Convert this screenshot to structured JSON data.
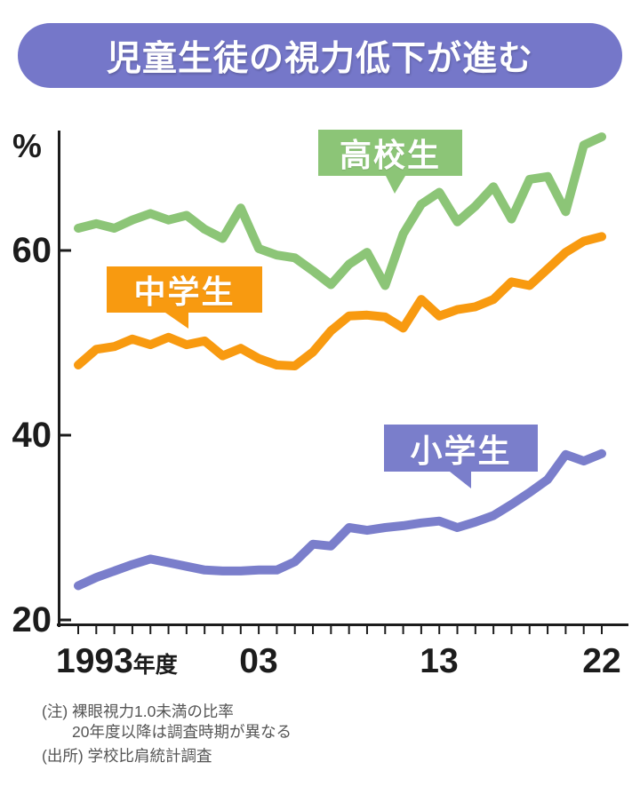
{
  "title": {
    "text": "児童生徒の視力低下が進む",
    "banner_color": "#7577c9",
    "text_color": "#ffffff"
  },
  "chart_data": {
    "type": "line",
    "title": "児童生徒の視力低下が進む",
    "unit_label": "%",
    "grid": false,
    "legend_position": "inline-callouts",
    "xlim": [
      1993,
      2022
    ],
    "ylim": [
      20,
      75
    ],
    "y_ticks": [
      60,
      40,
      20
    ],
    "x_tick_labels": [
      {
        "text": "1993",
        "suffix": "年度",
        "year": 1993
      },
      {
        "text": "03",
        "year": 2003
      },
      {
        "text": "13",
        "year": 2013
      },
      {
        "text": "22",
        "year": 2022
      }
    ],
    "x": [
      1993,
      1994,
      1995,
      1996,
      1997,
      1998,
      1999,
      2000,
      2001,
      2002,
      2003,
      2004,
      2005,
      2006,
      2007,
      2008,
      2009,
      2010,
      2011,
      2012,
      2013,
      2014,
      2015,
      2016,
      2017,
      2018,
      2019,
      2020,
      2021,
      2022
    ],
    "series": [
      {
        "key": "high-school",
        "name": "高校生",
        "color": "#8cc577",
        "values": [
          62.4,
          62.9,
          62.4,
          63.3,
          64.0,
          63.3,
          63.8,
          62.3,
          61.3,
          64.6,
          60.2,
          59.5,
          59.2,
          57.8,
          56.3,
          58.5,
          59.8,
          56.2,
          61.8,
          65.0,
          66.3,
          63.1,
          64.8,
          66.9,
          63.4,
          67.7,
          68.0,
          64.2,
          71.4,
          72.3
        ]
      },
      {
        "key": "middle-school",
        "name": "中学生",
        "color": "#f89a10",
        "values": [
          47.6,
          49.3,
          49.6,
          50.4,
          49.8,
          50.6,
          49.8,
          50.2,
          48.6,
          49.4,
          48.3,
          47.6,
          47.5,
          49.0,
          51.3,
          52.9,
          53.0,
          52.8,
          51.6,
          54.7,
          52.9,
          53.6,
          53.9,
          54.7,
          56.6,
          56.2,
          58.0,
          59.8,
          61.0,
          61.5
        ]
      },
      {
        "key": "elementary",
        "name": "小学生",
        "color": "#7a7ecb",
        "values": [
          23.7,
          24.6,
          25.3,
          26.0,
          26.6,
          26.2,
          25.8,
          25.4,
          25.3,
          25.3,
          25.4,
          25.4,
          26.3,
          28.2,
          28.0,
          30.0,
          29.7,
          30.0,
          30.2,
          30.5,
          30.7,
          30.0,
          30.6,
          31.3,
          32.5,
          33.8,
          35.2,
          37.9,
          37.2,
          38.0
        ]
      }
    ],
    "notes": [
      "(注) 裸眼視力1.0未満の比率",
      "20年度以降は調査時期が異なる"
    ],
    "source": "(出所) 学校比肩統計調査"
  },
  "colors": {
    "axis": "#1c1c1c",
    "note_text": "#555555",
    "background": "#ffffff"
  }
}
